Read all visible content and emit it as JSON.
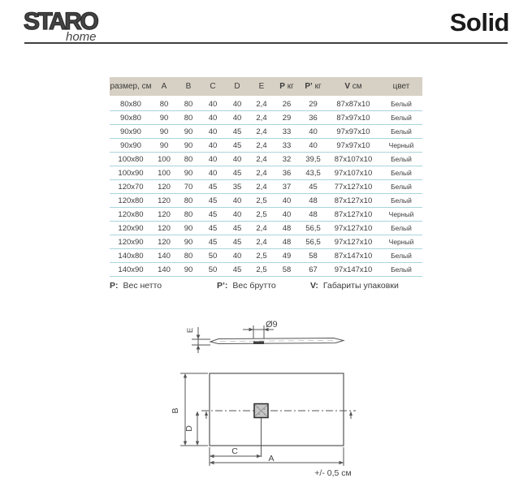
{
  "header": {
    "brand": "STARO",
    "brand_sub": "home",
    "title": "Solid"
  },
  "table": {
    "columns": [
      {
        "bold": "",
        "text": "размер, см"
      },
      {
        "bold": "",
        "text": "A"
      },
      {
        "bold": "",
        "text": "B"
      },
      {
        "bold": "",
        "text": "C"
      },
      {
        "bold": "",
        "text": "D"
      },
      {
        "bold": "",
        "text": "E"
      },
      {
        "bold": "P",
        "text": " кг"
      },
      {
        "bold": "P’",
        "text": " кг"
      },
      {
        "bold": "V",
        "text": " см"
      },
      {
        "bold": "",
        "text": "цвет"
      }
    ],
    "rows": [
      [
        "80x80",
        "80",
        "80",
        "40",
        "40",
        "2,4",
        "26",
        "29",
        "87x87x10",
        "Белый"
      ],
      [
        "90x80",
        "90",
        "80",
        "40",
        "40",
        "2,4",
        "29",
        "36",
        "87x97x10",
        "Белый"
      ],
      [
        "90x90",
        "90",
        "90",
        "40",
        "45",
        "2,4",
        "33",
        "40",
        "97x97x10",
        "Белый"
      ],
      [
        "90x90",
        "90",
        "90",
        "40",
        "45",
        "2,4",
        "33",
        "40",
        "97x97x10",
        "Черный"
      ],
      [
        "100x80",
        "100",
        "80",
        "40",
        "40",
        "2,4",
        "32",
        "39,5",
        "87x107x10",
        "Белый"
      ],
      [
        "100x90",
        "100",
        "90",
        "40",
        "45",
        "2,4",
        "36",
        "43,5",
        "97x107x10",
        "Белый"
      ],
      [
        "120x70",
        "120",
        "70",
        "45",
        "35",
        "2,4",
        "37",
        "45",
        "77x127x10",
        "Белый"
      ],
      [
        "120x80",
        "120",
        "80",
        "45",
        "40",
        "2,5",
        "40",
        "48",
        "87x127x10",
        "Белый"
      ],
      [
        "120x80",
        "120",
        "80",
        "45",
        "40",
        "2,5",
        "40",
        "48",
        "87x127x10",
        "Черный"
      ],
      [
        "120x90",
        "120",
        "90",
        "45",
        "45",
        "2,4",
        "48",
        "56,5",
        "97x127x10",
        "Белый"
      ],
      [
        "120x90",
        "120",
        "90",
        "45",
        "45",
        "2,4",
        "48",
        "56,5",
        "97x127x10",
        "Черный"
      ],
      [
        "140x80",
        "140",
        "80",
        "50",
        "40",
        "2,5",
        "49",
        "58",
        "87x147x10",
        "Белый"
      ],
      [
        "140x90",
        "140",
        "90",
        "50",
        "45",
        "2,5",
        "58",
        "67",
        "97x147x10",
        "Белый"
      ]
    ]
  },
  "legend": [
    {
      "label": "P:",
      "text": "Вес нетто"
    },
    {
      "label": "P’:",
      "text": "Вес брутто"
    },
    {
      "label": "V:",
      "text": "Габариты упаковки"
    }
  ],
  "drawing": {
    "side": {
      "e_label": "E",
      "diameter_label": "Ø9"
    },
    "top": {
      "a_label": "A",
      "b_label": "B",
      "c_label": "C",
      "d_label": "D",
      "tolerance": "+/- 0,5 см"
    }
  },
  "colors": {
    "table_header_bg": "#d7d0c4",
    "row_separator": "#a9d5dc",
    "text": "#3c3c3c",
    "drawing_line": "#555555"
  }
}
